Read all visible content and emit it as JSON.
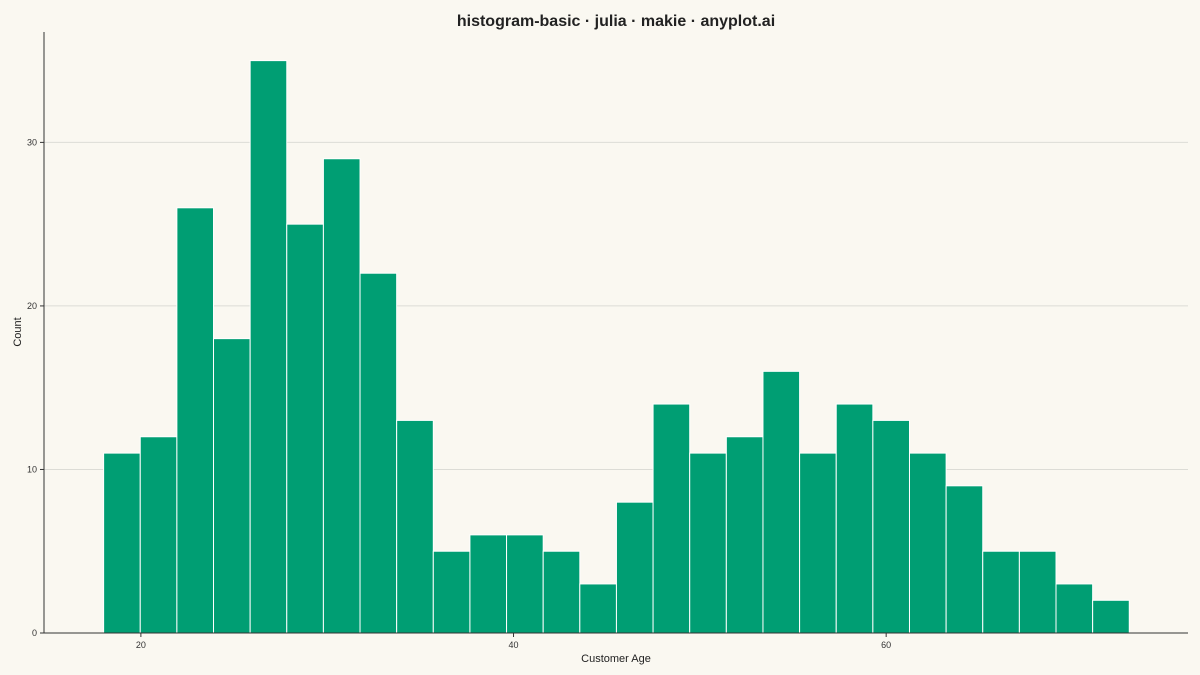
{
  "chart_data": {
    "type": "bar",
    "title": "histogram-basic · julia · makie · anyplot.ai",
    "xlabel": "Customer Age",
    "ylabel": "Count",
    "bin_start": 18,
    "bin_width": 1.966,
    "values": [
      11,
      12,
      26,
      18,
      35,
      25,
      29,
      22,
      13,
      5,
      6,
      6,
      5,
      3,
      8,
      14,
      11,
      12,
      16,
      11,
      14,
      13,
      11,
      9,
      5,
      5,
      3,
      2
    ],
    "xlim": [
      14.8,
      76.2
    ],
    "ylim": [
      0,
      36.75
    ],
    "xticks": [
      20,
      40,
      60
    ],
    "yticks": [
      0,
      10,
      20,
      30
    ],
    "grid": "horizontal",
    "legend": "none",
    "colors": {
      "bar": "#009E73",
      "bar_edge": "#FFFFFF",
      "background": "#FAF8F1"
    }
  }
}
